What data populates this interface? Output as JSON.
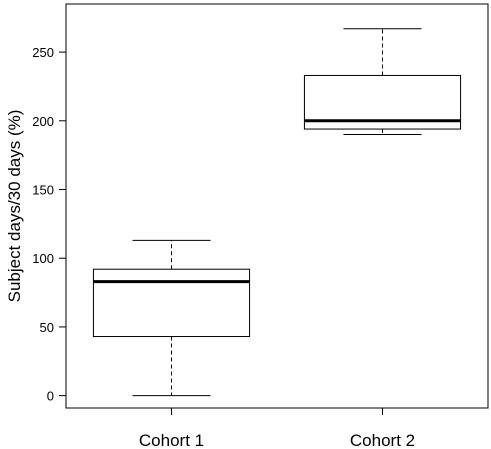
{
  "chart_data": {
    "type": "box",
    "categories": [
      "Cohort 1",
      "Cohort 2"
    ],
    "series": [
      {
        "min": 0,
        "q1": 43,
        "median": 83,
        "q3": 92,
        "max": 113
      },
      {
        "min": 190,
        "q1": 194,
        "median": 200,
        "q3": 233,
        "max": 267
      }
    ],
    "title": "",
    "xlabel": "",
    "ylabel": "Subject days/30 days (%)",
    "ylim": [
      -9,
      285
    ],
    "yticks": [
      0,
      50,
      100,
      150,
      200,
      250
    ],
    "grid": false,
    "frame": true
  }
}
